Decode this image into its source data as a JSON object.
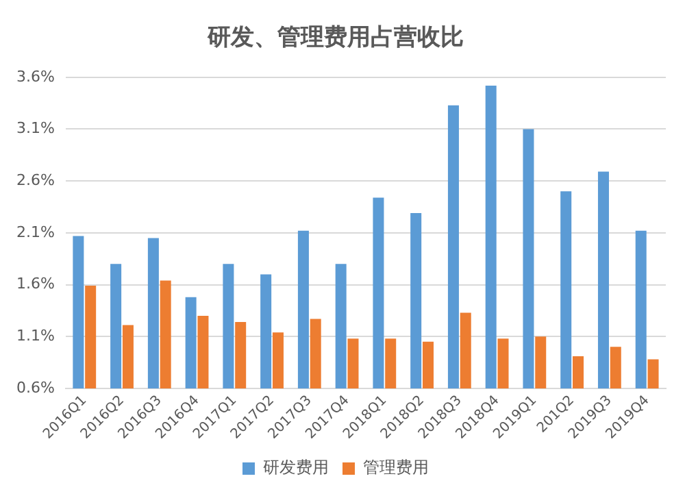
{
  "chart_data": {
    "type": "bar",
    "title": "研发、管理费用占营收比",
    "categories": [
      "2016Q1",
      "2016Q2",
      "2016Q3",
      "2016Q4",
      "2017Q1",
      "2017Q2",
      "2017Q3",
      "2017Q4",
      "2018Q1",
      "2018Q2",
      "2018Q3",
      "2018Q4",
      "2019Q1",
      "201Q2",
      "2019Q3",
      "2019Q4"
    ],
    "series": [
      {
        "name": "研发费用",
        "color": "#5b9bd5",
        "values": [
          2.07,
          1.8,
          2.05,
          1.48,
          1.8,
          1.7,
          2.12,
          1.8,
          2.44,
          2.29,
          3.33,
          3.52,
          3.1,
          2.5,
          2.69,
          2.12
        ]
      },
      {
        "name": "管理费用",
        "color": "#ed7d31",
        "values": [
          1.59,
          1.21,
          1.64,
          1.3,
          1.24,
          1.14,
          1.27,
          1.08,
          1.08,
          1.05,
          1.33,
          1.08,
          1.1,
          0.91,
          1.0,
          0.88
        ]
      }
    ],
    "ylim": [
      0.6,
      3.6
    ],
    "yticks": [
      {
        "value": 0.6,
        "label": "0.6%"
      },
      {
        "value": 1.1,
        "label": "1.1%"
      },
      {
        "value": 1.6,
        "label": "1.6%"
      },
      {
        "value": 2.1,
        "label": "2.1%"
      },
      {
        "value": 2.6,
        "label": "2.6%"
      },
      {
        "value": 3.1,
        "label": "3.1%"
      },
      {
        "value": 3.6,
        "label": "3.6%"
      }
    ],
    "grid": "y",
    "legend": "bottom"
  }
}
